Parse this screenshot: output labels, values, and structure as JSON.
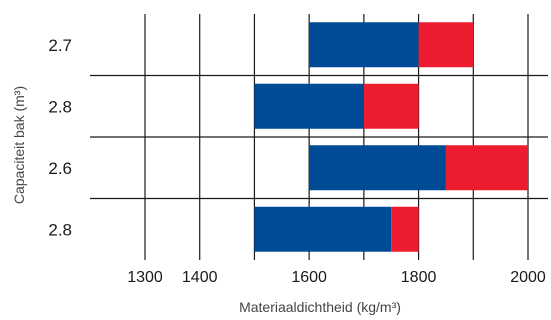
{
  "chart_data": {
    "type": "bar",
    "orientation": "horizontal",
    "stacked": true,
    "xlabel": "Materiaaldichtheid (kg/m³)",
    "ylabel": "Capaciteit bak (m³)",
    "xlim": [
      1250,
      2050
    ],
    "xticks": [
      1300,
      1400,
      1600,
      1800,
      2000
    ],
    "gridlines_x": [
      1300,
      1400,
      1500,
      1600,
      1700,
      1800,
      1900,
      2000
    ],
    "grid": true,
    "categories": [
      "2.7",
      "2.8",
      "2.6",
      "2.8"
    ],
    "series": [
      {
        "color": "#004b96",
        "ranges": [
          [
            1600,
            1800
          ],
          [
            1500,
            1700
          ],
          [
            1600,
            1850
          ],
          [
            1500,
            1750
          ]
        ]
      },
      {
        "color": "#ed1c2e",
        "ranges": [
          [
            1800,
            1900
          ],
          [
            1700,
            1800
          ],
          [
            1850,
            2000
          ],
          [
            1750,
            1800
          ]
        ]
      }
    ]
  }
}
